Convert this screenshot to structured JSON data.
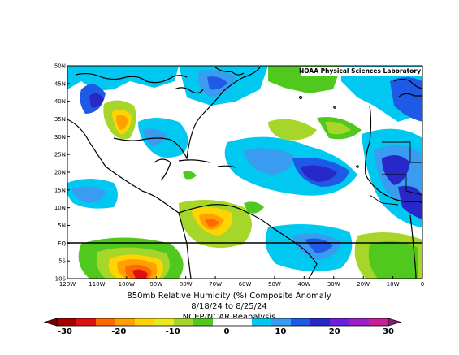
{
  "map": {
    "credit": "NOAA Physical Sciences Laboratory",
    "title_line1": "850mb Relative Humidity (%) Composite Anomaly",
    "title_line2": "8/18/24  to 8/25/24",
    "title_line3": "NCEP/NCAR Reanalysis",
    "lat_labels": [
      "50N",
      "45N",
      "40N",
      "35N",
      "30N",
      "25N",
      "20N",
      "15N",
      "10N",
      "5N",
      "EQ",
      "5S",
      "10S"
    ],
    "lon_labels": [
      "120W",
      "110W",
      "100W",
      "90W",
      "80W",
      "70W",
      "60W",
      "50W",
      "40W",
      "30W",
      "20W",
      "10W",
      "0"
    ],
    "extent": {
      "lon_min": -120,
      "lon_max": 0,
      "lat_min": -10,
      "lat_max": 50
    }
  },
  "colorbar": {
    "labels": [
      "-30",
      "-20",
      "-10",
      "0",
      "10",
      "20",
      "30"
    ],
    "colors": [
      "#a50000",
      "#e01010",
      "#ff6a00",
      "#ffa000",
      "#ffd400",
      "#e8ea1a",
      "#a6d62a",
      "#50c81e",
      "#ffffff",
      "#ffffff",
      "#00c8f0",
      "#3a9cf0",
      "#1e5ae6",
      "#2828c8",
      "#6e1ee0",
      "#a01ec8",
      "#c81e96"
    ]
  }
}
